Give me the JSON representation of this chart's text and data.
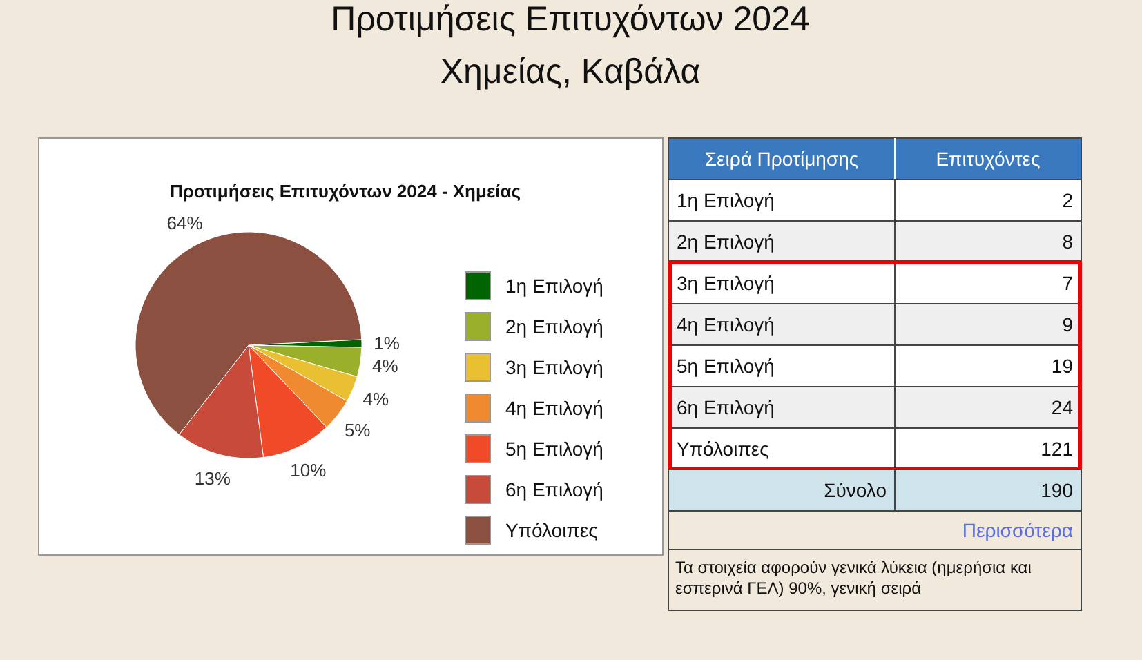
{
  "chart_data": [
    {
      "type": "pie",
      "title": "Προτιμήσεις Επιτυχόντων 2024",
      "subtitle": "Χημείας, Καβάλα",
      "categories": [
        "1η Επιλογή",
        "2η Επιλογή",
        "3η Επιλογή",
        "4η Επιλογή",
        "5η Επιλογή",
        "6η Επιλογή",
        "Υπόλοιπες"
      ],
      "values": [
        1.1,
        4.2,
        3.7,
        4.7,
        10,
        12.6,
        63.7
      ],
      "colors": [
        "#006400",
        "#9aaf2a",
        "#e8c032",
        "#f08a30",
        "#f04a28",
        "#c84a3a",
        "#8b5040"
      ],
      "value_labels": [
        "1%",
        "4%",
        "4%",
        "5%",
        "10%",
        "13%",
        "64%"
      ],
      "legend": "right",
      "annotations": [
        "Προτιμήσεις Επιτυχόντων 2024 - Χημείας"
      ]
    },
    {
      "type": "other",
      "xlabel": "Σειρά Προτίμησης",
      "ylabel": "Επιτυχόντες",
      "categories": [
        "1η Επιλογή",
        "2η Επιλογή",
        "3η Επιλογή",
        "4η Επιλογή",
        "5η Επιλογή",
        "6η Επιλογή",
        "Υπόλοιπες"
      ],
      "values": [
        2,
        8,
        7,
        9,
        19,
        24,
        121
      ],
      "data_labels": true,
      "totals": [
        "190"
      ],
      "annotations": [
        "Σύνολο",
        "Περισσότερα",
        "Τα στοιχεία αφορούν γενικά λύκεια (ημερήσια και εσπερινά ΓΕΛ) 90%, γενική σειρά"
      ]
    }
  ]
}
